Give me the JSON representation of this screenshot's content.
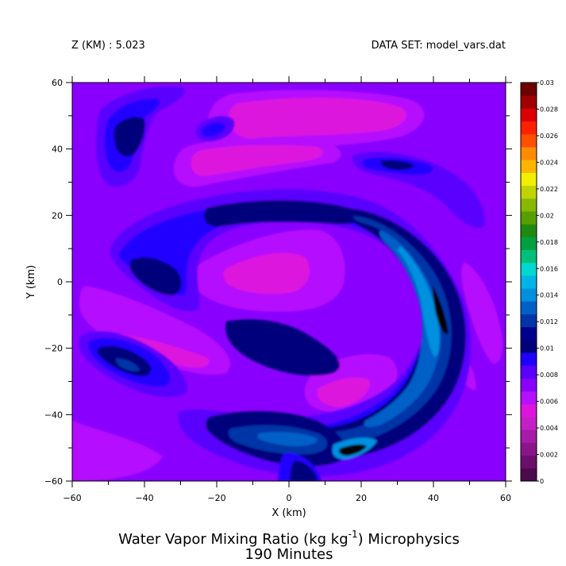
{
  "header": {
    "z_label": "Z (KM) : 5.023",
    "dataset_label": "DATA SET: model_vars.dat"
  },
  "chart_data": {
    "type": "heatmap",
    "title_main": "Water Vapor Mixing Ratio (kg kg",
    "title_sup": "-1",
    "title_rest": ") Microphysics",
    "subtitle": "190 Minutes",
    "xlabel": "X (km)",
    "ylabel": "Y (km)",
    "xlim": [
      -60,
      60
    ],
    "ylim": [
      -60,
      60
    ],
    "x_ticks": [
      -60,
      -40,
      -20,
      0,
      20,
      40,
      60
    ],
    "y_ticks": [
      -60,
      -40,
      -20,
      0,
      20,
      40,
      60
    ],
    "x_tick_labels": [
      "−60",
      "−40",
      "−20",
      "0",
      "20",
      "40",
      "60"
    ],
    "y_tick_labels": [
      "−60",
      "−40",
      "−20",
      "0",
      "20",
      "40",
      "60"
    ],
    "colorbar": {
      "min": 0,
      "max": 0.03,
      "step": 0.001,
      "tick_labels": [
        "0",
        "0.002",
        "0.004",
        "0.006",
        "0.008",
        "0.01",
        "0.012",
        "0.014",
        "0.016",
        "0.018",
        "0.02",
        "0.022",
        "0.024",
        "0.026",
        "0.028",
        "0.03"
      ],
      "colors": [
        "#4b0a4b",
        "#6b0f6b",
        "#8a158a",
        "#a81aa8",
        "#c41fc4",
        "#dd14dd",
        "#b510ff",
        "#8a00ff",
        "#5a00ff",
        "#2000ff",
        "#00007c",
        "#00008e",
        "#0035a8",
        "#0060c8",
        "#0090e0",
        "#00b4e8",
        "#00d8d0",
        "#00c07a",
        "#00a040",
        "#208a10",
        "#55a000",
        "#88b800",
        "#c0d400",
        "#f0f000",
        "#ffb400",
        "#ff8c00",
        "#ff5000",
        "#ff2000",
        "#dd0000",
        "#a00000",
        "#6e0000"
      ]
    },
    "field_levels": [
      {
        "value": 0.0075,
        "color": "#8a00ff"
      },
      {
        "value": 0.0055,
        "color": "#b510ff"
      },
      {
        "value": 0.0045,
        "color": "#dd14dd"
      },
      {
        "value": 0.0085,
        "color": "#5a00ff"
      },
      {
        "value": 0.0095,
        "color": "#2000ff"
      },
      {
        "value": 0.0105,
        "color": "#00007c"
      },
      {
        "value": 0.0115,
        "color": "#0035a8"
      },
      {
        "value": 0.0125,
        "color": "#0060c8"
      },
      {
        "value": 0.0135,
        "color": "#0090e0"
      }
    ]
  }
}
